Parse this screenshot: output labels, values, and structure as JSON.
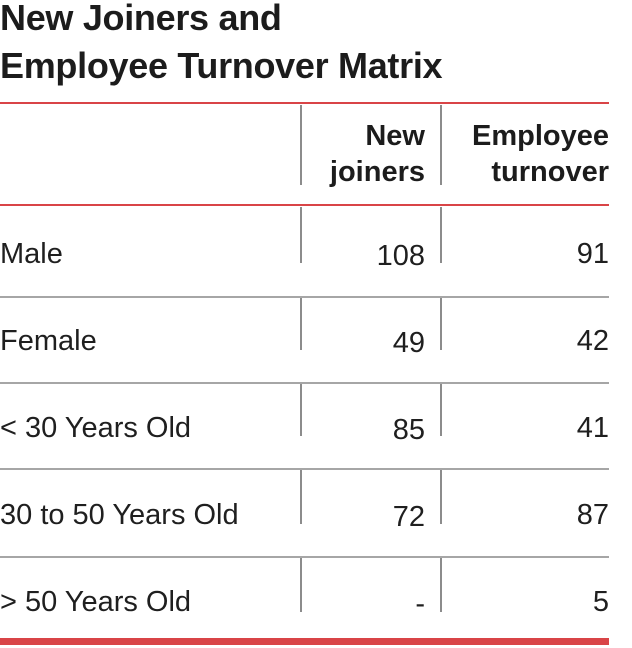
{
  "title": {
    "line1": "New Joiners and",
    "line2": "Employee Turnover Matrix"
  },
  "columns": {
    "new_joiners": [
      "New",
      "joiners"
    ],
    "employee_turnover": [
      "Employee",
      "turnover"
    ]
  },
  "rows": [
    {
      "label": "Male",
      "new_joiners": "108",
      "employee_turnover": "91"
    },
    {
      "label": "Female",
      "new_joiners": "49",
      "employee_turnover": "42"
    },
    {
      "label": "< 30 Years Old",
      "new_joiners": "85",
      "employee_turnover": "41"
    },
    {
      "label": "30 to 50 Years Old",
      "new_joiners": "72",
      "employee_turnover": "87"
    },
    {
      "label": "> 50 Years Old",
      "new_joiners": "-",
      "employee_turnover": "5"
    }
  ],
  "colors": {
    "accent": "#d94447",
    "divider": "#a6a6a6",
    "text": "#1f1f1f"
  }
}
